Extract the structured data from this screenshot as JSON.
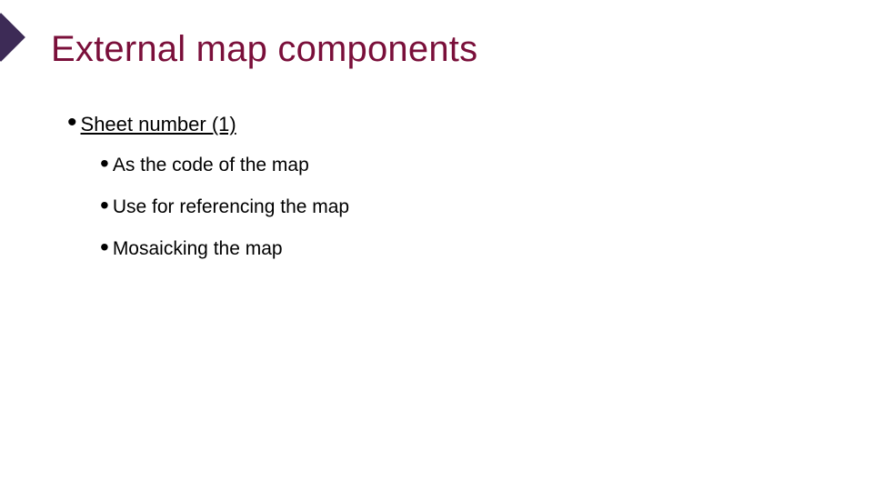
{
  "colors": {
    "title": "#7a0f3a",
    "body": "#000000",
    "bullet": "#000000",
    "corner": "#3d2b56",
    "background": "#ffffff"
  },
  "typography": {
    "title_fontsize": 40,
    "l1_fontsize": 22,
    "l2_fontsize": 21,
    "family": "Arial"
  },
  "title": "External map components",
  "level1": {
    "label": "Sheet number (1)",
    "underline": true
  },
  "level2": [
    {
      "label": "As the code of the map"
    },
    {
      "label": "Use for referencing the map"
    },
    {
      "label": "Mosaicking the map"
    }
  ]
}
